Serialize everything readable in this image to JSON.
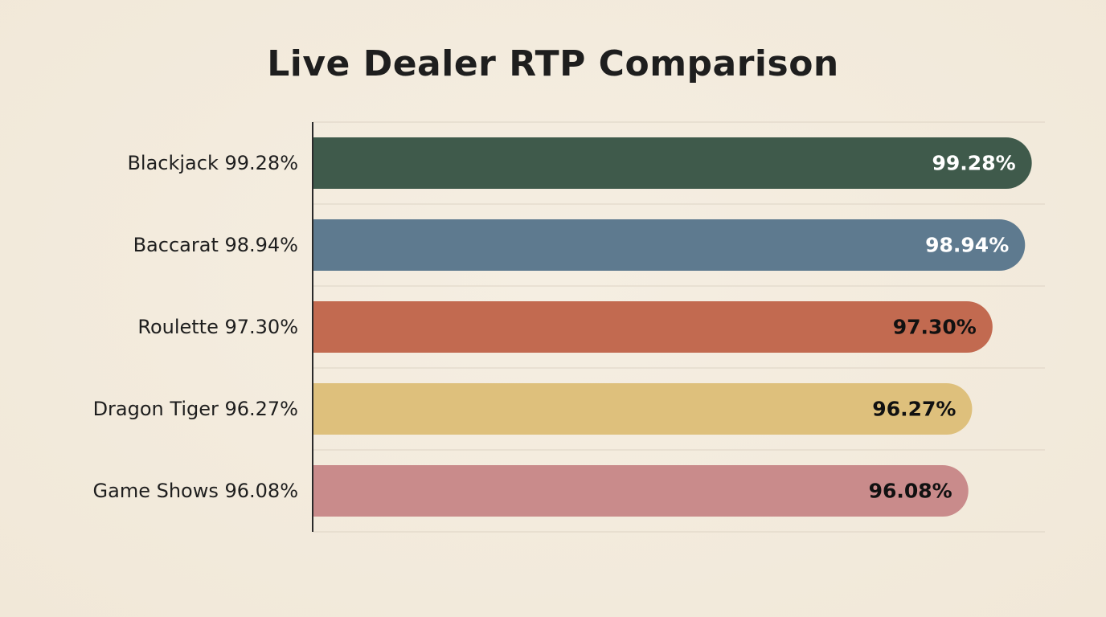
{
  "chart_data": {
    "type": "bar",
    "orientation": "horizontal",
    "title": "Live Dealer RTP Comparison",
    "xlabel": "",
    "ylabel": "",
    "categories": [
      "Blackjack 99.28%",
      "Baccarat 98.94%",
      "Roulette 97.30%",
      "Dragon Tiger 96.27%",
      "Game Shows 96.08%"
    ],
    "values": [
      99.28,
      98.94,
      97.3,
      96.27,
      96.08
    ],
    "data_labels": [
      "99.28%",
      "98.94%",
      "97.30%",
      "96.27%",
      "96.08%"
    ],
    "colors": [
      "#3f5a4b",
      "#5e7a8f",
      "#c26a50",
      "#dec07c",
      "#c98b8b"
    ],
    "label_colors": [
      "#ffffff",
      "#ffffff",
      "#111111",
      "#111111",
      "#111111"
    ],
    "xlim": [
      63,
      100
    ],
    "grid": true,
    "legend": "none"
  }
}
